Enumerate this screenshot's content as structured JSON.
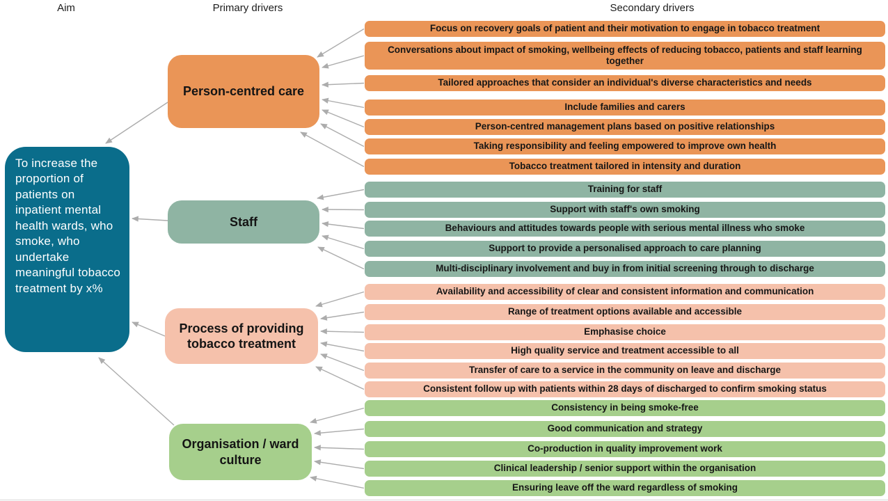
{
  "headers": {
    "aim": "Aim",
    "primary": "Primary drivers",
    "secondary": "Secondary drivers"
  },
  "aim": {
    "text": "To increase the proportion of patients on inpatient mental health wards, who smoke, who undertake meaningful tobacco treatment by x%",
    "color": "#0A6D8B"
  },
  "primary_drivers": [
    {
      "label": "Person-centred care",
      "color": "#EA9557",
      "secondary": [
        "Focus on recovery goals of patient and their motivation to engage in tobacco treatment",
        "Conversations about impact of smoking, wellbeing effects of reducing tobacco, patients and staff learning together",
        "Tailored approaches that consider an individual's diverse characteristics and needs",
        "Include families and carers",
        "Person-centred management plans based on positive relationships",
        "Taking responsibility and feeling empowered to improve own health",
        "Tobacco treatment tailored in intensity and duration"
      ]
    },
    {
      "label": "Staff",
      "color": "#8FB4A3",
      "secondary": [
        "Training for staff",
        "Support with staff's own smoking",
        "Behaviours and attitudes towards people with serious mental illness who smoke",
        "Support to provide a personalised approach to care planning",
        "Multi-disciplinary involvement and buy in from initial screening through to discharge"
      ]
    },
    {
      "label": "Process of providing tobacco treatment",
      "color": "#F5C1AB",
      "secondary": [
        "Availability and accessibility of clear and consistent information and communication",
        "Range of treatment options available and accessible",
        "Emphasise choice",
        "High quality service and treatment accessible to all",
        "Transfer of care to a service in the community on leave and discharge",
        "Consistent follow up with patients within 28 days of discharged to confirm smoking status"
      ]
    },
    {
      "label": "Organisation / ward culture",
      "color": "#A6CF8C",
      "secondary": [
        "Consistency in being smoke-free",
        "Good communication and strategy",
        "Co-production in quality improvement work",
        "Clinical leadership / senior support within the organisation",
        "Ensuring leave off the ward regardless of smoking"
      ]
    }
  ],
  "colors": {
    "arrow": "#ACACAC",
    "divider": "#D8D8D8"
  }
}
